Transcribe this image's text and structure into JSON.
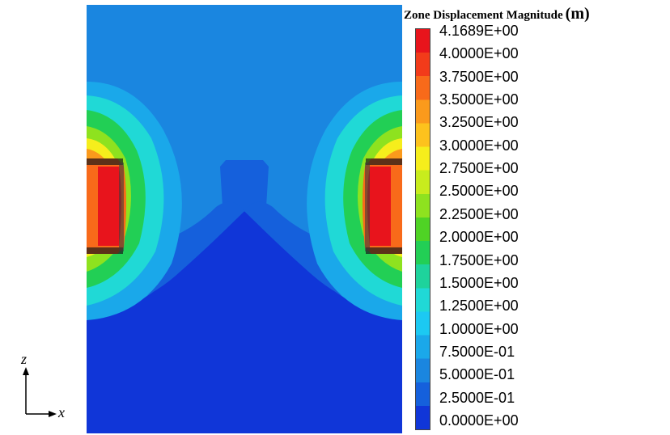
{
  "legend": {
    "title": "Zone Displacement Magnitude",
    "unit": "(m)",
    "labels": [
      "4.1689E+00",
      "4.0000E+00",
      "3.7500E+00",
      "3.5000E+00",
      "3.2500E+00",
      "3.0000E+00",
      "2.7500E+00",
      "2.5000E+00",
      "2.2500E+00",
      "2.0000E+00",
      "1.7500E+00",
      "1.5000E+00",
      "1.2500E+00",
      "1.0000E+00",
      "7.5000E-01",
      "5.0000E-01",
      "2.5000E-01",
      "0.0000E+00"
    ],
    "colors": [
      "#e8141c",
      "#f23b1a",
      "#f86a1a",
      "#fb9a1c",
      "#fdc21d",
      "#f6ee1c",
      "#c8ec1d",
      "#8ee21f",
      "#4fd325",
      "#22cf55",
      "#1ed39c",
      "#20d9d6",
      "#1cc9f2",
      "#1aa8ea",
      "#1a86e0",
      "#1560dc",
      "#1036d8"
    ]
  },
  "axes": {
    "vertical": "z",
    "horizontal": "x"
  }
}
